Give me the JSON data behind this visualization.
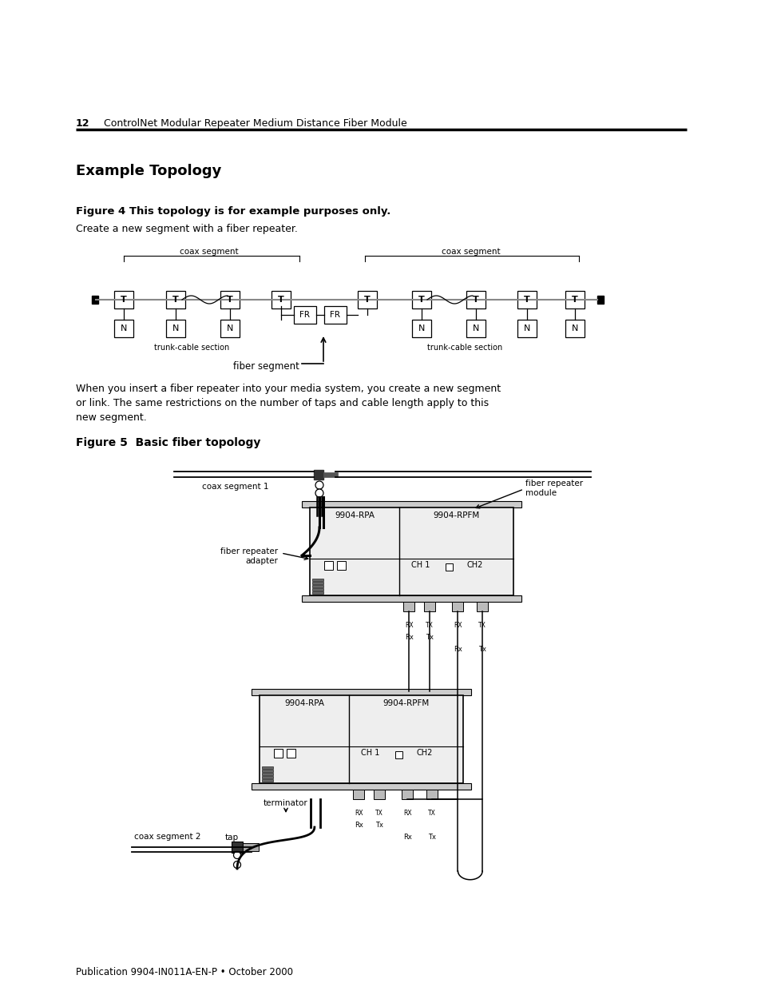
{
  "page_num": "12",
  "header_text": "ControlNet Modular Repeater Medium Distance Fiber Module",
  "section_title": "Example Topology",
  "fig4_caption": "Figure 4 This topology is for example purposes only.",
  "fig4_desc": "Create a new segment with a fiber repeater.",
  "fig5_caption": "Figure 5  Basic fiber topology",
  "body_text_1": "When you insert a fiber repeater into your media system, you create a new segment",
  "body_text_2": "or link. The same restrictions on the number of taps and cable length apply to this",
  "body_text_3": "new segment.",
  "footer_text": "Publication 9904-IN011A-EN-P • October 2000",
  "bg_color": "#ffffff"
}
